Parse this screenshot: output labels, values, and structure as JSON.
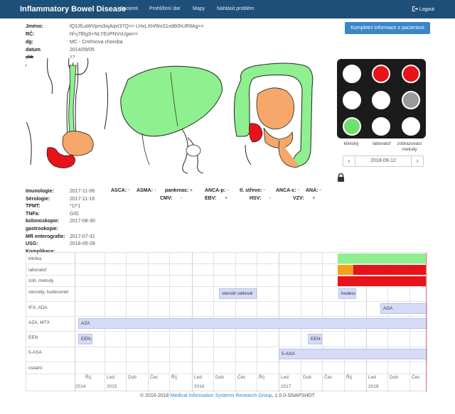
{
  "navbar": {
    "brand": "Inflammatory Bowel Disease",
    "items": [
      "Pacienti",
      "Prohlížení dat",
      "Mapy",
      "Nahlásit problém"
    ],
    "logout": "Logout"
  },
  "patient": {
    "rows": [
      {
        "label": "Jméno:",
        "value": "lQ3JfLaWVpmi3xjAqvI37Q== LHxLXH/6txS1xd60hUR9Ag=="
      },
      {
        "label": "RČ:",
        "value": "hf+j7lRgS+NLYEzPNVsUgw=="
      },
      {
        "label": "dg:",
        "value": "MC - Crohnova choroba"
      },
      {
        "label": "datum dg:",
        "value": "2014/09/05"
      },
      {
        "label": "věk dg:",
        "value": "12"
      }
    ],
    "full_info_button": "Kompletní informace o pacientovi"
  },
  "status_panel": {
    "labels": [
      "klinický",
      "laboratoř",
      "zobrazovací metody"
    ],
    "dots": [
      "#ffffff",
      "#e8121b",
      "#e8121b",
      "#ffffff",
      "#ffffff",
      "#9a9a9a",
      "#6fe06f",
      "#ffffff",
      "#ffffff"
    ],
    "date": "2018-09-12",
    "prev": "‹",
    "next": "›"
  },
  "labs": {
    "rows": [
      {
        "label": "Imunologie:",
        "value": "2017-11-06"
      },
      {
        "label": "Sérologie:",
        "value": "2017-11-16"
      },
      {
        "label": "TPMT:",
        "value": "*1/*1"
      },
      {
        "label": "TNFa:",
        "value": "G/G"
      },
      {
        "label": "kolonoskopie:",
        "value": "2017-08-30"
      },
      {
        "label": "gastroskopie:",
        "value": ""
      },
      {
        "label": "MR enterografie:",
        "value": "2017-07-31"
      },
      {
        "label": "USG:",
        "value": "2018-05-28"
      },
      {
        "label": "Komplikace:",
        "value": ""
      }
    ],
    "antibodies_row1": [
      {
        "name": "ASCA:",
        "val": "-"
      },
      {
        "name": "ASMA:",
        "val": "-"
      },
      {
        "name": "pankreas:",
        "val": "+"
      },
      {
        "name": "ANCA-p:",
        "val": "-"
      },
      {
        "name": "tl. střevo:",
        "val": "-"
      },
      {
        "name": "ANCA-c:",
        "val": "-"
      },
      {
        "name": "ANA:",
        "val": "-"
      }
    ],
    "antibodies_row2": [
      {
        "name": "CMV:",
        "val": "-"
      },
      {
        "name": "EBV:",
        "val": "+"
      },
      {
        "name": "HSV:",
        "val": "-"
      },
      {
        "name": "VZV:",
        "val": "+"
      }
    ]
  },
  "timeline": {
    "rows": [
      "klinika",
      "laboratoř",
      "zob. metody",
      "steroidy, budesonid",
      "IFX, ADA",
      "AZA, MTX",
      "EEN",
      "5-ASA",
      "ostatní"
    ],
    "bars": [
      {
        "row": 3,
        "label": "steroid celkově"
      },
      {
        "row": 3,
        "label": "budesonid"
      },
      {
        "row": 4,
        "label": "ADA"
      },
      {
        "row": 5,
        "label": "AZA"
      },
      {
        "row": 6,
        "label": "EEN-sipping"
      },
      {
        "row": 6,
        "label": "EEN-sipping"
      },
      {
        "row": 7,
        "label": "5-ASA"
      }
    ],
    "ticks_month": [
      "Říj",
      "Led",
      "Dub",
      "Čec",
      "Říj",
      "Led",
      "Dub",
      "Čec",
      "Říj",
      "Led",
      "Dub",
      "Čec",
      "Říj",
      "Led",
      "Dub",
      "Čec"
    ],
    "ticks_year": [
      "2014",
      "2015",
      "2016",
      "2017",
      "2018"
    ],
    "status_colors": {
      "green": "#8ef08e",
      "orange": "#f5a21a",
      "red": "#e8121b"
    }
  },
  "footer": {
    "prefix": "© 2016-2018",
    "link": "Medical Information Systems Research Group",
    "suffix": ", 1.0.0-SNAPSHOT"
  }
}
